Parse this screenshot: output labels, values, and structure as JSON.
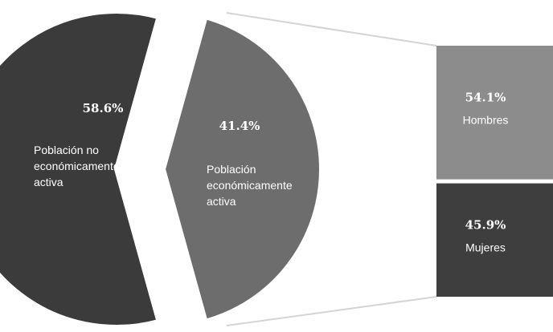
{
  "chart_data": {
    "type": "bar-of-pie",
    "pie": {
      "slices": [
        {
          "label": "Población no económicamente activa",
          "lines": [
            "Población no",
            "económicamente",
            "activa"
          ],
          "value": 58.6,
          "display": "58.6%",
          "color": "#3b3b3b"
        },
        {
          "label": "Población económicamente activa",
          "lines": [
            "Población",
            "económicamente",
            "activa"
          ],
          "value": 41.4,
          "display": "41.4%",
          "color": "#6d6d6d"
        }
      ]
    },
    "breakdown": {
      "of": "Población económicamente activa",
      "segments": [
        {
          "label": "Hombres",
          "value": 54.1,
          "display": "54.1%",
          "color": "#8c8c8c"
        },
        {
          "label": "Mujeres",
          "value": 45.9,
          "display": "45.9%",
          "color": "#3e3e3e"
        }
      ]
    }
  }
}
